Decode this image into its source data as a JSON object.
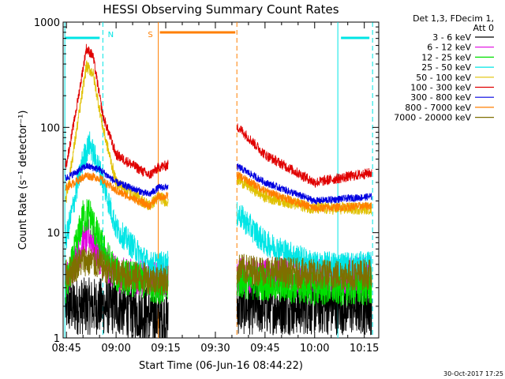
{
  "chart_data": {
    "type": "line",
    "title": "HESSI Observing Summary Count Rates",
    "xlabel": "Start Time (06-Jun-16 08:44:22)",
    "ylabel": "Count Rate (s⁻¹ detector⁻¹)",
    "ylim": [
      1,
      1000
    ],
    "yscale": "log",
    "xlim_minutes_after_start": [
      -0.37,
      95.0
    ],
    "x_ticks": [
      "08:45",
      "09:00",
      "09:15",
      "09:30",
      "09:45",
      "10:00",
      "10:15"
    ],
    "y_ticks": [
      "1",
      "10",
      "100",
      "1000"
    ],
    "grid": false,
    "legend_position": "outside-right",
    "legend_header": [
      "Det 1,3, FDecim 1,",
      "Att 0"
    ],
    "timestamp": "30-Oct-2017 17:25",
    "data_gap": [
      "09:15:45",
      "09:36:30"
    ],
    "annotations": {
      "night_label": "N",
      "saa_label": "S",
      "night_color": "#00e5e5",
      "saa_color": "#ff7f00",
      "markers": [
        {
          "label": "N",
          "time": "08:56:00",
          "color": "#00e5e5"
        },
        {
          "label": "S",
          "time": "09:12:45",
          "color": "#ff7f00"
        },
        {
          "label": "",
          "time": "09:36:30",
          "color": "#ff7f00"
        },
        {
          "label": "",
          "time": "10:07:00",
          "color": "#00e5e5"
        },
        {
          "label": "",
          "time": "10:17:30",
          "color": "#00e5e5"
        }
      ]
    },
    "series": [
      {
        "name": "3 - 6 keV",
        "color": "#000000",
        "points": [
          [
            "08:45",
            2.0
          ],
          [
            "09:00",
            2.0
          ],
          [
            "09:15",
            1.5
          ],
          [
            "09:37",
            2.0
          ],
          [
            "10:00",
            2.0
          ],
          [
            "10:17",
            2.0
          ]
        ]
      },
      {
        "name": "6 - 12 keV",
        "color": "#e000e0",
        "points": [
          [
            "08:45",
            3.5
          ],
          [
            "08:50",
            8
          ],
          [
            "08:52",
            9.5
          ],
          [
            "08:55",
            6
          ],
          [
            "09:00",
            4
          ],
          [
            "09:15",
            3.5
          ],
          [
            "09:37",
            4
          ],
          [
            "10:00",
            3.8
          ],
          [
            "10:17",
            4
          ]
        ]
      },
      {
        "name": "12 - 25 keV",
        "color": "#00e000",
        "points": [
          [
            "08:45",
            3
          ],
          [
            "08:50",
            14
          ],
          [
            "08:52",
            15
          ],
          [
            "08:55",
            8
          ],
          [
            "09:00",
            4
          ],
          [
            "09:15",
            3
          ],
          [
            "09:37",
            3.5
          ],
          [
            "10:00",
            3
          ],
          [
            "10:17",
            3
          ]
        ]
      },
      {
        "name": "25 - 50 keV",
        "color": "#00e5e5",
        "points": [
          [
            "08:45",
            9
          ],
          [
            "08:50",
            50
          ],
          [
            "08:52",
            70
          ],
          [
            "08:55",
            40
          ],
          [
            "09:00",
            11
          ],
          [
            "09:10",
            5
          ],
          [
            "09:15",
            5
          ],
          [
            "09:37",
            15
          ],
          [
            "09:45",
            8
          ],
          [
            "10:00",
            5
          ],
          [
            "10:17",
            5
          ]
        ]
      },
      {
        "name": "50 - 100 keV",
        "color": "#e0c000",
        "points": [
          [
            "08:45",
            22
          ],
          [
            "08:48",
            90
          ],
          [
            "08:51",
            380
          ],
          [
            "08:53",
            330
          ],
          [
            "08:56",
            100
          ],
          [
            "09:00",
            30
          ],
          [
            "09:10",
            18
          ],
          [
            "09:13",
            22
          ],
          [
            "09:15",
            20
          ],
          [
            "09:37",
            32
          ],
          [
            "09:45",
            22
          ],
          [
            "10:00",
            17
          ],
          [
            "10:17",
            17
          ]
        ]
      },
      {
        "name": "100 - 300 keV",
        "color": "#e00000",
        "points": [
          [
            "08:45",
            45
          ],
          [
            "08:48",
            150
          ],
          [
            "08:51",
            560
          ],
          [
            "08:53",
            480
          ],
          [
            "08:56",
            130
          ],
          [
            "09:00",
            55
          ],
          [
            "09:10",
            35
          ],
          [
            "09:13",
            42
          ],
          [
            "09:15",
            43
          ],
          [
            "09:37",
            100
          ],
          [
            "09:45",
            55
          ],
          [
            "10:00",
            30
          ],
          [
            "10:17",
            37
          ]
        ]
      },
      {
        "name": "300 - 800 keV",
        "color": "#0000e0",
        "points": [
          [
            "08:45",
            33
          ],
          [
            "08:51",
            43
          ],
          [
            "08:55",
            40
          ],
          [
            "09:00",
            30
          ],
          [
            "09:10",
            23
          ],
          [
            "09:13",
            27
          ],
          [
            "09:15",
            27
          ],
          [
            "09:37",
            42
          ],
          [
            "09:45",
            30
          ],
          [
            "10:00",
            20
          ],
          [
            "10:17",
            22
          ]
        ]
      },
      {
        "name": "800 - 7000 keV",
        "color": "#ff7f00",
        "points": [
          [
            "08:45",
            27
          ],
          [
            "08:51",
            35
          ],
          [
            "08:55",
            33
          ],
          [
            "09:00",
            25
          ],
          [
            "09:10",
            18
          ],
          [
            "09:13",
            22
          ],
          [
            "09:15",
            22
          ],
          [
            "09:37",
            35
          ],
          [
            "09:45",
            25
          ],
          [
            "10:00",
            17
          ],
          [
            "10:17",
            18
          ]
        ]
      },
      {
        "name": "7000 - 20000 keV",
        "color": "#7f6f00",
        "points": [
          [
            "08:45",
            4
          ],
          [
            "08:50",
            5.5
          ],
          [
            "08:55",
            5
          ],
          [
            "09:00",
            4
          ],
          [
            "09:15",
            3.5
          ],
          [
            "09:37",
            4.5
          ],
          [
            "10:00",
            4
          ],
          [
            "10:17",
            4
          ]
        ]
      }
    ]
  }
}
